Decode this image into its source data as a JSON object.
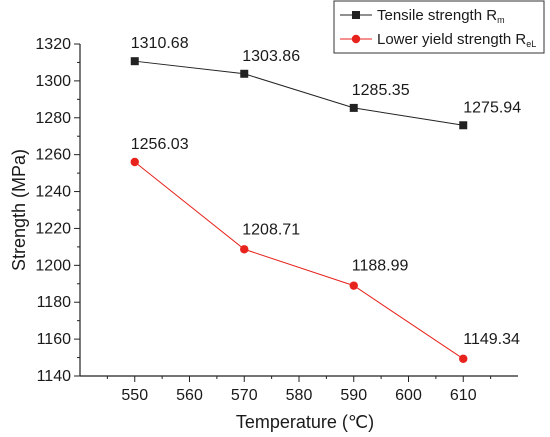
{
  "chart_data": {
    "type": "line",
    "xlabel": "Temperature (℃)",
    "ylabel": "Strength (MPa)",
    "xlim": [
      540,
      620
    ],
    "ylim": [
      1140,
      1320
    ],
    "x_ticks": [
      550,
      560,
      570,
      580,
      590,
      600,
      610
    ],
    "y_ticks": [
      1140,
      1160,
      1180,
      1200,
      1220,
      1240,
      1260,
      1280,
      1300,
      1320
    ],
    "grid": false,
    "legend_position": "top-right",
    "series": [
      {
        "name_main": "Tensile strength R",
        "name_sub": "m",
        "color": "#222222",
        "marker": "square",
        "x": [
          550,
          570,
          590,
          610
        ],
        "values": [
          1310.68,
          1303.86,
          1285.35,
          1275.94
        ],
        "labels": [
          "1310.68",
          "1303.86",
          "1285.35",
          "1275.94"
        ]
      },
      {
        "name_main": "Lower yield strength R",
        "name_sub": "eL",
        "color": "#e8221c",
        "marker": "circle",
        "x": [
          550,
          570,
          590,
          610
        ],
        "values": [
          1256.03,
          1208.71,
          1188.99,
          1149.34
        ],
        "labels": [
          "1256.03",
          "1208.71",
          "1188.99",
          "1149.34"
        ]
      }
    ]
  }
}
